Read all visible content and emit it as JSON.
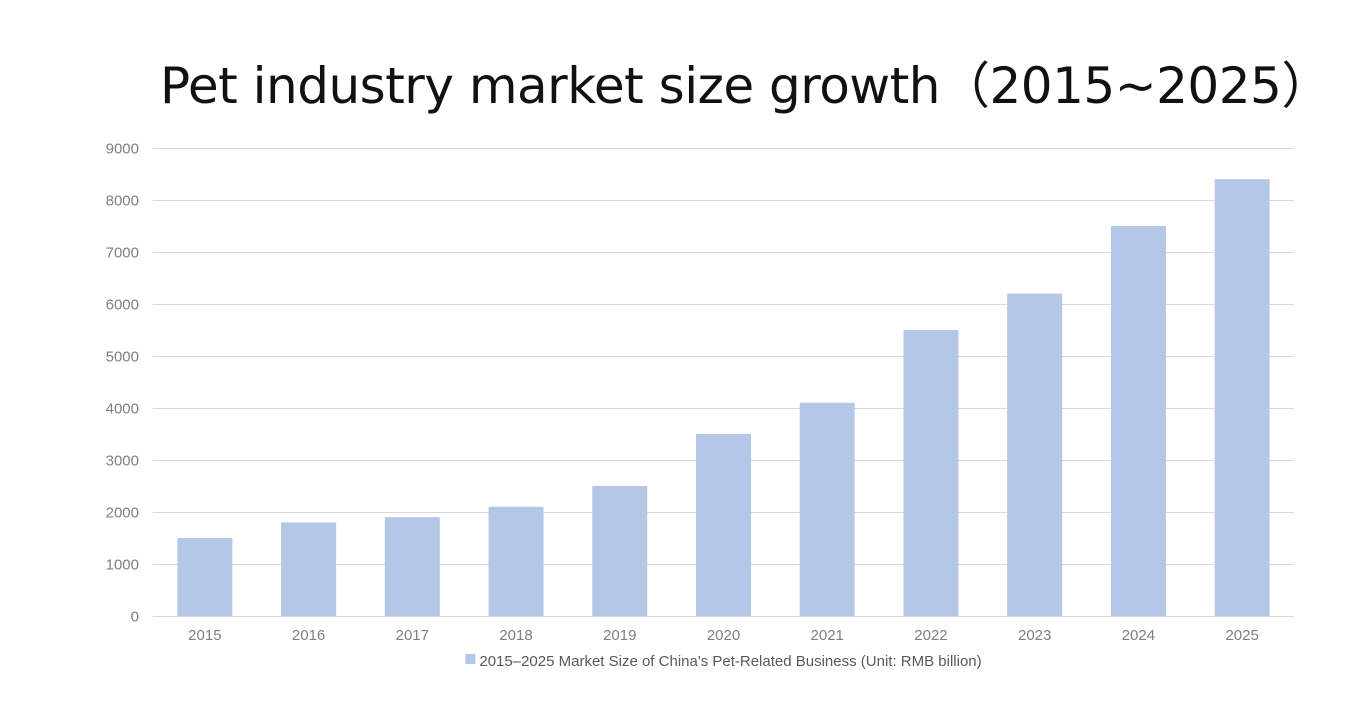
{
  "chart_data": {
    "type": "bar",
    "title": "Pet industry market size growth（2015~2025）",
    "categories": [
      "2015",
      "2016",
      "2017",
      "2018",
      "2019",
      "2020",
      "2021",
      "2022",
      "2023",
      "2024",
      "2025"
    ],
    "series": [
      {
        "name": "2015–2025 Market Size of China's Pet-Related Business (Unit: RMB billion)",
        "values": [
          1500,
          1800,
          1900,
          2100,
          2500,
          3500,
          4100,
          5500,
          6200,
          7500,
          8400
        ],
        "color": "#b4c7e7"
      }
    ],
    "y_ticks": [
      "0",
      "1000",
      "2000",
      "3000",
      "4000",
      "5000",
      "6000",
      "7000",
      "8000",
      "9000"
    ],
    "ylim": [
      0,
      9000
    ],
    "xlabel": "",
    "ylabel": "",
    "grid": true,
    "legend_position": "bottom"
  },
  "colors": {
    "gridline": "#d9d9d9",
    "axis_text": "#7f7f7f"
  }
}
